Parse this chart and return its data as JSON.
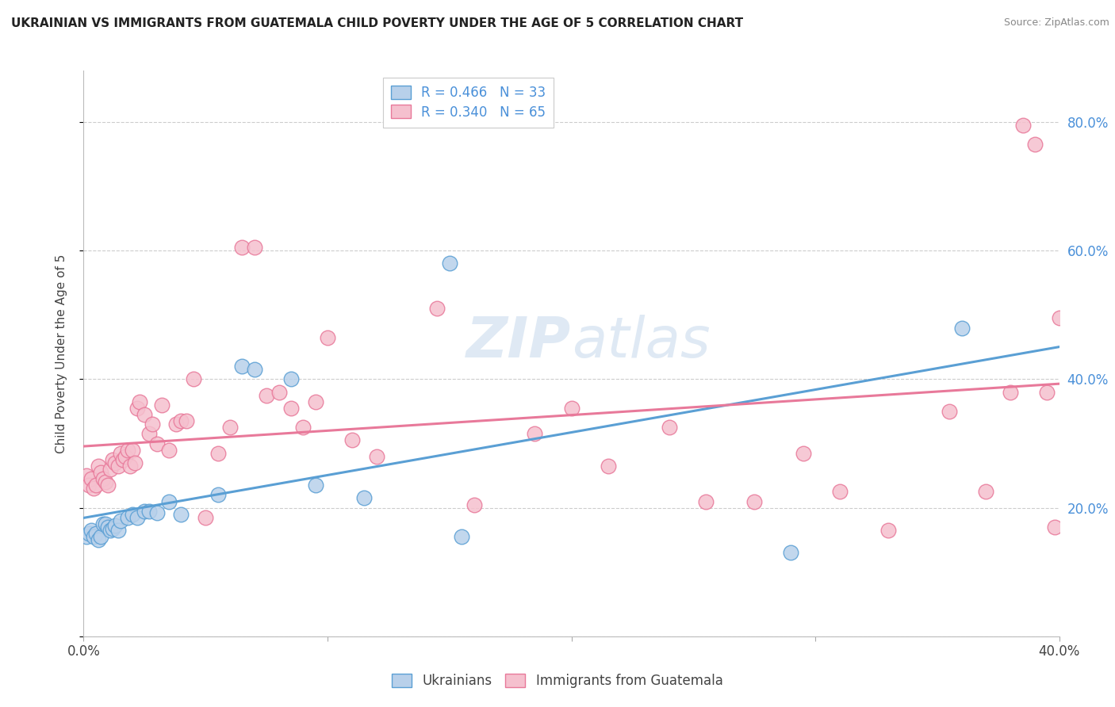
{
  "title": "UKRAINIAN VS IMMIGRANTS FROM GUATEMALA CHILD POVERTY UNDER THE AGE OF 5 CORRELATION CHART",
  "source": "Source: ZipAtlas.com",
  "ylabel": "Child Poverty Under the Age of 5",
  "xlim": [
    0.0,
    0.4
  ],
  "ylim": [
    0.0,
    0.88
  ],
  "yticks": [
    0.0,
    0.2,
    0.4,
    0.6,
    0.8
  ],
  "xticks": [
    0.0,
    0.1,
    0.2,
    0.3,
    0.4
  ],
  "blue_R": 0.466,
  "blue_N": 33,
  "pink_R": 0.34,
  "pink_N": 65,
  "blue_color": "#b8d0ea",
  "pink_color": "#f5c0ce",
  "blue_line_color": "#5a9fd4",
  "pink_line_color": "#e8799a",
  "legend_text_color": "#4a90d9",
  "watermark": "ZIPatlas",
  "blue_x": [
    0.001,
    0.002,
    0.003,
    0.004,
    0.005,
    0.006,
    0.007,
    0.008,
    0.009,
    0.01,
    0.011,
    0.012,
    0.013,
    0.014,
    0.015,
    0.018,
    0.02,
    0.022,
    0.025,
    0.027,
    0.03,
    0.035,
    0.04,
    0.055,
    0.065,
    0.07,
    0.085,
    0.095,
    0.115,
    0.15,
    0.155,
    0.29,
    0.36
  ],
  "blue_y": [
    0.155,
    0.16,
    0.165,
    0.155,
    0.16,
    0.15,
    0.155,
    0.175,
    0.175,
    0.17,
    0.165,
    0.168,
    0.172,
    0.165,
    0.18,
    0.185,
    0.19,
    0.185,
    0.195,
    0.195,
    0.192,
    0.21,
    0.19,
    0.22,
    0.42,
    0.415,
    0.4,
    0.235,
    0.215,
    0.58,
    0.155,
    0.13,
    0.48
  ],
  "pink_x": [
    0.001,
    0.002,
    0.003,
    0.004,
    0.005,
    0.006,
    0.007,
    0.008,
    0.009,
    0.01,
    0.011,
    0.012,
    0.013,
    0.014,
    0.015,
    0.016,
    0.017,
    0.018,
    0.019,
    0.02,
    0.021,
    0.022,
    0.023,
    0.025,
    0.027,
    0.028,
    0.03,
    0.032,
    0.035,
    0.038,
    0.04,
    0.042,
    0.045,
    0.05,
    0.055,
    0.06,
    0.065,
    0.07,
    0.075,
    0.08,
    0.085,
    0.09,
    0.095,
    0.1,
    0.11,
    0.12,
    0.145,
    0.16,
    0.185,
    0.2,
    0.215,
    0.24,
    0.255,
    0.275,
    0.295,
    0.31,
    0.33,
    0.355,
    0.37,
    0.38,
    0.385,
    0.39,
    0.395,
    0.398,
    0.4
  ],
  "pink_y": [
    0.25,
    0.235,
    0.245,
    0.23,
    0.235,
    0.265,
    0.255,
    0.245,
    0.24,
    0.235,
    0.26,
    0.275,
    0.27,
    0.265,
    0.285,
    0.275,
    0.28,
    0.29,
    0.265,
    0.29,
    0.27,
    0.355,
    0.365,
    0.345,
    0.315,
    0.33,
    0.3,
    0.36,
    0.29,
    0.33,
    0.335,
    0.335,
    0.4,
    0.185,
    0.285,
    0.325,
    0.605,
    0.605,
    0.375,
    0.38,
    0.355,
    0.325,
    0.365,
    0.465,
    0.305,
    0.28,
    0.51,
    0.205,
    0.315,
    0.355,
    0.265,
    0.325,
    0.21,
    0.21,
    0.285,
    0.225,
    0.165,
    0.35,
    0.225,
    0.38,
    0.795,
    0.765,
    0.38,
    0.17,
    0.495
  ]
}
